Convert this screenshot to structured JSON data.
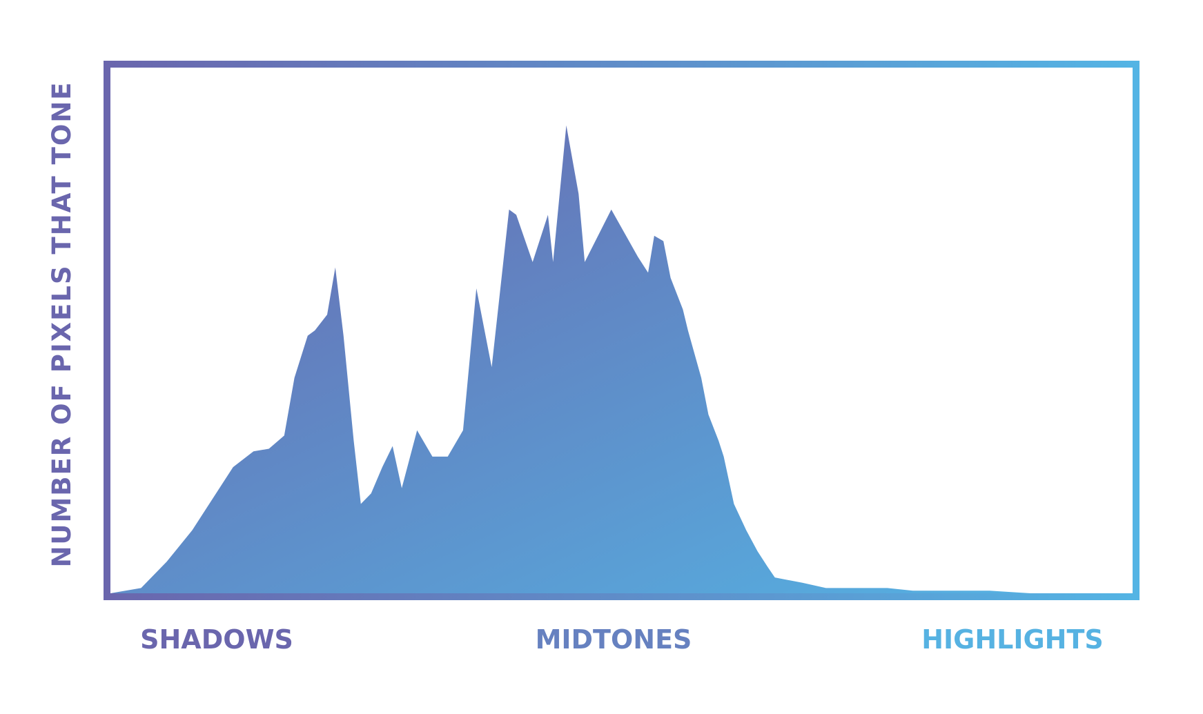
{
  "chart_data": {
    "type": "area",
    "title": "",
    "ylabel": "NUMBER OF PIXELS THAT TONE",
    "xlabel": "",
    "tone_labels": [
      "SHADOWS",
      "MIDTONES",
      "HIGHLIGHTS"
    ],
    "xlim": [
      0,
      1
    ],
    "ylim": [
      0,
      1
    ],
    "grid": false,
    "legend": "none",
    "colors": {
      "start": "#6a66ad",
      "end": "#54b4e4"
    },
    "series": [
      {
        "x": [
          0.0,
          0.03,
          0.055,
          0.08,
          0.12,
          0.14,
          0.155,
          0.17,
          0.18,
          0.193,
          0.2,
          0.212,
          0.22,
          0.228,
          0.238,
          0.245,
          0.255,
          0.266,
          0.276,
          0.285,
          0.3,
          0.315,
          0.33,
          0.345,
          0.358,
          0.373,
          0.39,
          0.397,
          0.413,
          0.428,
          0.433,
          0.446,
          0.458,
          0.464,
          0.49,
          0.516,
          0.526,
          0.532,
          0.541,
          0.548,
          0.56,
          0.565,
          0.578,
          0.585,
          0.595,
          0.6,
          0.61,
          0.622,
          0.633,
          0.643,
          0.65,
          0.677,
          0.7,
          0.74,
          0.76,
          0.785,
          0.82,
          0.86,
          0.9,
          0.95,
          1.0
        ],
        "y": [
          0.0,
          0.01,
          0.06,
          0.12,
          0.24,
          0.27,
          0.275,
          0.3,
          0.41,
          0.49,
          0.5,
          0.53,
          0.62,
          0.49,
          0.29,
          0.17,
          0.19,
          0.24,
          0.28,
          0.2,
          0.31,
          0.26,
          0.26,
          0.31,
          0.58,
          0.43,
          0.73,
          0.72,
          0.63,
          0.72,
          0.63,
          0.89,
          0.76,
          0.63,
          0.73,
          0.64,
          0.61,
          0.68,
          0.67,
          0.6,
          0.54,
          0.5,
          0.41,
          0.34,
          0.29,
          0.26,
          0.17,
          0.12,
          0.08,
          0.05,
          0.03,
          0.02,
          0.01,
          0.01,
          0.01,
          0.005,
          0.005,
          0.005,
          0.0,
          0.0,
          0.0
        ]
      }
    ]
  }
}
